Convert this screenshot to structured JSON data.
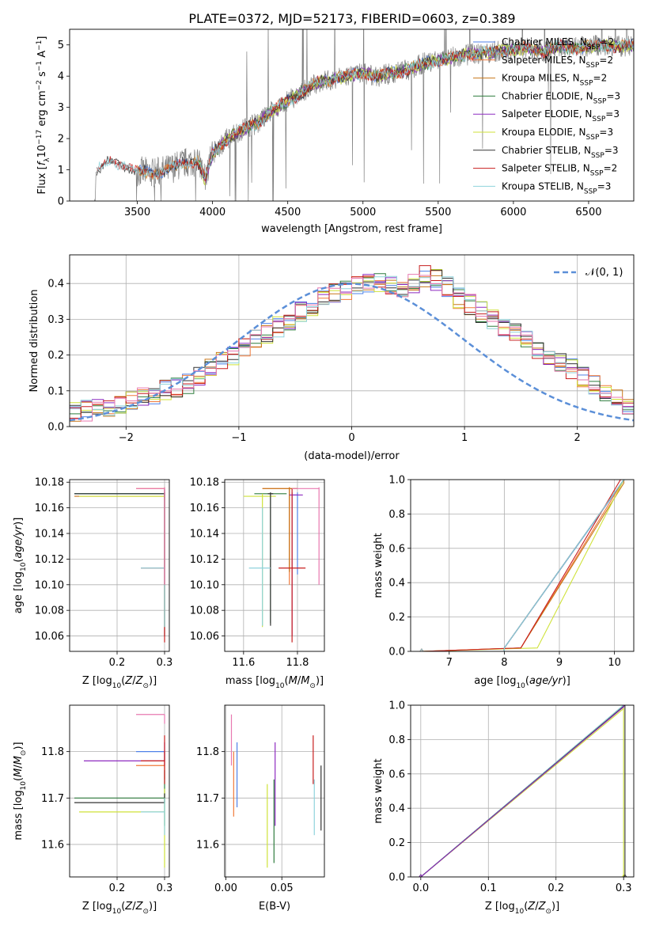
{
  "title": "PLATE=0372, MJD=52173, FIBERID=0603, z=0.389",
  "colors": {
    "chabrier_miles": "#4f81e8",
    "salpeter_miles": "#f07a3a",
    "kroupa_miles": "#c8761a",
    "chabrier_elodie": "#2f7d3e",
    "salpeter_elodie": "#8e2bc0",
    "kroupa_elodie": "#cfe23a",
    "chabrier_stelib": "#333333",
    "salpeter_stelib": "#c81e1e",
    "kroupa_stelib": "#8fd3dc",
    "data": "#808080",
    "gaussian": "#5b8fd8",
    "pink": "#e879b0"
  },
  "chart_data": [
    {
      "type": "line",
      "id": "spectrum",
      "title": "PLATE=0372, MJD=52173, FIBERID=0603, z=0.389",
      "xlabel": "wavelength [Angstrom, rest frame]",
      "ylabel_pre": "Flux [",
      "ylabel_fl": "f",
      "ylabel_fl_sub": "λ",
      "ylabel_mid": "10",
      "ylabel_exp1": "−17",
      "ylabel_unit": " erg cm",
      "ylabel_exp2": "−2",
      "ylabel_s": " s",
      "ylabel_exp3": "−1",
      "ylabel_a": " A",
      "ylabel_exp4": "−1",
      "ylabel_end": "]",
      "xlim": [
        3050,
        6800
      ],
      "ylim": [
        0,
        5.5
      ],
      "xticks": [
        "3500",
        "4000",
        "4500",
        "5000",
        "5500",
        "6000",
        "6500"
      ],
      "yticks": [
        "0",
        "1",
        "2",
        "3",
        "4",
        "5"
      ],
      "legend_position": "top-right",
      "legend": [
        {
          "name": "Chabrier MILES, N",
          "sub": "SSP",
          "tail": "=2"
        },
        {
          "name": "Salpeter MILES, N",
          "sub": "SSP",
          "tail": "=2"
        },
        {
          "name": "Kroupa MILES, N",
          "sub": "SSP",
          "tail": "=2"
        },
        {
          "name": "Chabrier ELODIE, N",
          "sub": "SSP",
          "tail": "=3"
        },
        {
          "name": "Salpeter ELODIE, N",
          "sub": "SSP",
          "tail": "=3"
        },
        {
          "name": "Kroupa ELODIE, N",
          "sub": "SSP",
          "tail": "=3"
        },
        {
          "name": "Chabrier STELIB, N",
          "sub": "SSP",
          "tail": "=3"
        },
        {
          "name": "Salpeter STELIB, N",
          "sub": "SSP",
          "tail": "=2"
        },
        {
          "name": "Kroupa STELIB, N",
          "sub": "SSP",
          "tail": "=3"
        }
      ],
      "continuum": [
        [
          3220,
          0
        ],
        [
          3225,
          0.9
        ],
        [
          3260,
          1.1
        ],
        [
          3300,
          1.25
        ],
        [
          3400,
          1.2
        ],
        [
          3500,
          0.95
        ],
        [
          3600,
          0.9
        ],
        [
          3700,
          1.0
        ],
        [
          3800,
          1.2
        ],
        [
          3900,
          1.3
        ],
        [
          3950,
          0.7
        ],
        [
          4000,
          1.5
        ],
        [
          4100,
          2.0
        ],
        [
          4200,
          2.3
        ],
        [
          4300,
          2.5
        ],
        [
          4400,
          2.9
        ],
        [
          4500,
          3.2
        ],
        [
          4600,
          3.5
        ],
        [
          4700,
          3.8
        ],
        [
          4800,
          3.9
        ],
        [
          4900,
          4.0
        ],
        [
          5000,
          4.1
        ],
        [
          5100,
          4.0
        ],
        [
          5200,
          4.1
        ],
        [
          5300,
          4.2
        ],
        [
          5400,
          4.4
        ],
        [
          5500,
          4.5
        ],
        [
          5600,
          4.6
        ],
        [
          5700,
          4.7
        ],
        [
          5800,
          4.75
        ],
        [
          5900,
          4.8
        ],
        [
          6000,
          4.85
        ],
        [
          6100,
          4.9
        ],
        [
          6200,
          4.8
        ],
        [
          6300,
          4.95
        ],
        [
          6400,
          4.9
        ],
        [
          6500,
          4.95
        ],
        [
          6600,
          5.0
        ],
        [
          6700,
          4.95
        ],
        [
          6800,
          5.0
        ]
      ]
    },
    {
      "type": "line",
      "id": "residuals",
      "xlabel": "(data-model)/error",
      "ylabel": "Normed distribution",
      "xlim": [
        -2.5,
        2.5
      ],
      "ylim": [
        0,
        0.48
      ],
      "xticks": [
        "−2",
        "−1",
        "0",
        "1",
        "2"
      ],
      "yticks": [
        "0.0",
        "0.1",
        "0.2",
        "0.3",
        "0.4"
      ],
      "legend_position": "top-right",
      "legend": [
        "𝒩(0, 1)"
      ],
      "bin_width": 0.1,
      "envelope": [
        0.04,
        0.045,
        0.05,
        0.055,
        0.06,
        0.07,
        0.08,
        0.09,
        0.1,
        0.11,
        0.12,
        0.14,
        0.16,
        0.18,
        0.2,
        0.22,
        0.24,
        0.26,
        0.28,
        0.3,
        0.32,
        0.34,
        0.36,
        0.37,
        0.38,
        0.39,
        0.4,
        0.4,
        0.39,
        0.38,
        0.4,
        0.42,
        0.41,
        0.39,
        0.36,
        0.34,
        0.32,
        0.3,
        0.28,
        0.26,
        0.24,
        0.22,
        0.2,
        0.18,
        0.16,
        0.14,
        0.12,
        0.1,
        0.08,
        0.06
      ]
    },
    {
      "type": "scatter",
      "id": "age-vs-z",
      "xlabel_pre": "Z [log",
      "xlabel_sub": "10",
      "xlabel_post": "(Z/Z",
      "xlabel_sun": "⊙",
      "xlabel_end": ")]",
      "ylabel_pre": "age  [log",
      "ylabel_sub": "10",
      "ylabel_post": "(age/yr)]",
      "xlim": [
        0.1,
        0.31
      ],
      "ylim": [
        10.048,
        10.182
      ],
      "xticks": [
        "0.2",
        "0.3"
      ],
      "yticks": [
        "10.06",
        "10.08",
        "10.10",
        "10.12",
        "10.14",
        "10.16",
        "10.18"
      ],
      "points": [
        {
          "series": "chabrier_miles",
          "x": 0.3,
          "y": 10.171,
          "xlo": 0.11,
          "ylo": 10.168,
          "yhi": 10.174
        },
        {
          "series": "salpeter_miles",
          "x": 0.3,
          "y": 10.175,
          "xlo": 0.24,
          "ylo": 10.172,
          "yhi": 10.176
        },
        {
          "series": "kroupa_miles",
          "x": 0.3,
          "y": 10.169,
          "xlo": 0.11,
          "ylo": 10.166,
          "yhi": 10.172
        },
        {
          "series": "chabrier_elodie",
          "x": 0.3,
          "y": 10.171,
          "xlo": 0.11,
          "ylo": 10.112,
          "yhi": 10.172
        },
        {
          "series": "kroupa_elodie",
          "x": 0.3,
          "y": 10.169,
          "xlo": 0.12,
          "ylo": 10.067,
          "yhi": 10.171
        },
        {
          "series": "chabrier_stelib",
          "x": 0.3,
          "y": 10.171,
          "xlo": 0.11,
          "ylo": 10.06,
          "yhi": 10.172
        },
        {
          "series": "salpeter_stelib",
          "x": 0.3,
          "y": 10.113,
          "xlo": 0.25,
          "ylo": 10.055,
          "yhi": 10.175
        },
        {
          "series": "kroupa_stelib",
          "x": 0.3,
          "y": 10.113,
          "xlo": 0.25,
          "ylo": 10.067,
          "yhi": 10.175
        },
        {
          "series": "pink",
          "x": 0.3,
          "y": 10.175,
          "xlo": 0.24,
          "ylo": 10.1,
          "yhi": 10.176
        }
      ]
    },
    {
      "type": "scatter",
      "id": "age-vs-mass",
      "xlabel_pre": "mass [log",
      "xlabel_sub": "10",
      "xlabel_post": "(M/M",
      "xlabel_sun": "⊙",
      "xlabel_end": ")]",
      "xlim": [
        11.53,
        11.9
      ],
      "ylim": [
        10.048,
        10.182
      ],
      "xticks": [
        "11.6",
        "11.8"
      ],
      "yticks": [
        "10.06",
        "10.08",
        "10.10",
        "10.12",
        "10.14",
        "10.16",
        "10.18"
      ],
      "points": [
        {
          "series": "chabrier_miles",
          "x": 11.8,
          "y": 10.17,
          "xlo": 11.78,
          "xhi": 11.8,
          "ylo": 10.108,
          "yhi": 10.172
        },
        {
          "series": "salpeter_miles",
          "x": 11.77,
          "y": 10.175,
          "xlo": 11.67,
          "xhi": 11.8,
          "ylo": 10.1,
          "yhi": 10.176
        },
        {
          "series": "kroupa_miles",
          "x": 11.77,
          "y": 10.175,
          "xlo": 11.67,
          "xhi": 11.8,
          "ylo": 10.11,
          "yhi": 10.176
        },
        {
          "series": "chabrier_elodie",
          "x": 11.7,
          "y": 10.171,
          "xlo": 11.64,
          "xhi": 11.76,
          "ylo": 10.07,
          "yhi": 10.172
        },
        {
          "series": "salpeter_elodie",
          "x": 11.78,
          "y": 10.17,
          "xlo": 11.77,
          "xhi": 11.82,
          "ylo": 10.06,
          "yhi": 10.172
        },
        {
          "series": "kroupa_elodie",
          "x": 11.67,
          "y": 10.169,
          "xlo": 11.6,
          "xhi": 11.72,
          "ylo": 10.067,
          "yhi": 10.171
        },
        {
          "series": "chabrier_stelib",
          "x": 11.7,
          "y": 10.171,
          "xlo": 11.69,
          "xhi": 11.71,
          "ylo": 10.068,
          "yhi": 10.172
        },
        {
          "series": "salpeter_stelib",
          "x": 11.78,
          "y": 10.113,
          "xlo": 11.73,
          "xhi": 11.83,
          "ylo": 10.055,
          "yhi": 10.175
        },
        {
          "series": "kroupa_stelib",
          "x": 11.67,
          "y": 10.113,
          "xlo": 11.62,
          "xhi": 11.7,
          "ylo": 10.068,
          "yhi": 10.16
        },
        {
          "series": "pink",
          "x": 11.88,
          "y": 10.175,
          "xlo": 11.78,
          "xhi": 11.88,
          "ylo": 10.1,
          "yhi": 10.176
        }
      ]
    },
    {
      "type": "line",
      "id": "mass-weight-age",
      "xlabel_pre": "age  [log",
      "xlabel_sub": "10",
      "xlabel_post": "(age/yr)]",
      "ylabel": "mass weight",
      "xlim": [
        6.3,
        10.35
      ],
      "ylim": [
        0,
        1
      ],
      "xticks": [
        "7",
        "8",
        "9",
        "10"
      ],
      "yticks": [
        "0.0",
        "0.2",
        "0.4",
        "0.6",
        "0.8",
        "1.0"
      ],
      "series": [
        {
          "name": "chabrier_miles",
          "x": [
            6.5,
            8.0,
            8.0,
            10.18,
            10.18
          ],
          "y": [
            0,
            0.0,
            0.02,
            1.0,
            1.0
          ]
        },
        {
          "name": "salpeter_miles",
          "x": [
            6.5,
            8.3,
            8.3,
            10.17,
            10.17
          ],
          "y": [
            0,
            0.02,
            0.02,
            1.0,
            1.0
          ]
        },
        {
          "name": "kroupa_miles",
          "x": [
            6.5,
            8.3,
            8.3,
            10.17,
            10.17
          ],
          "y": [
            0,
            0.02,
            0.02,
            0.98,
            1.0
          ]
        },
        {
          "name": "chabrier_elodie",
          "x": [
            6.5,
            8.0,
            8.0,
            10.17,
            10.17
          ],
          "y": [
            0,
            0.0,
            0.02,
            1.0,
            1.0
          ]
        },
        {
          "name": "salpeter_elodie",
          "x": [
            6.5,
            8.0,
            8.0,
            10.17,
            10.17
          ],
          "y": [
            0,
            0.0,
            0.02,
            1.0,
            1.0
          ]
        },
        {
          "name": "kroupa_elodie",
          "x": [
            6.5,
            8.6,
            8.6,
            10.17,
            10.17
          ],
          "y": [
            0,
            0.02,
            0.02,
            1.0,
            1.0
          ]
        },
        {
          "name": "chabrier_stelib",
          "x": [
            6.5,
            8.0,
            8.0,
            10.17,
            10.17
          ],
          "y": [
            0,
            0.0,
            0.02,
            1.0,
            1.0
          ]
        },
        {
          "name": "salpeter_stelib",
          "x": [
            6.5,
            8.3,
            8.3,
            10.11,
            10.11
          ],
          "y": [
            0,
            0.02,
            0.02,
            1.0,
            1.0
          ]
        },
        {
          "name": "kroupa_stelib",
          "x": [
            6.5,
            8.0,
            8.0,
            10.17,
            10.17
          ],
          "y": [
            0,
            0.0,
            0.02,
            1.0,
            1.0
          ]
        }
      ]
    },
    {
      "type": "scatter",
      "id": "mass-vs-z",
      "xlabel_pre": "Z [log",
      "xlabel_sub": "10",
      "xlabel_post": "(Z/Z",
      "xlabel_sun": "⊙",
      "xlabel_end": ")]",
      "ylabel_pre": "mass [log",
      "ylabel_sub": "10",
      "ylabel_post": "(M/M",
      "ylabel_sun": "⊙",
      "ylabel_end": ")]",
      "xlim": [
        0.1,
        0.31
      ],
      "ylim": [
        11.53,
        11.9
      ],
      "xticks": [
        "0.2",
        "0.3"
      ],
      "yticks": [
        "11.6",
        "11.7",
        "11.8"
      ],
      "points": [
        {
          "series": "chabrier_miles",
          "x": 0.3,
          "y": 11.8,
          "xlo": 0.24,
          "ylo": 11.78,
          "yhi": 11.8
        },
        {
          "series": "salpeter_miles",
          "x": 0.3,
          "y": 11.77,
          "xlo": 0.24,
          "ylo": 11.74,
          "yhi": 11.8
        },
        {
          "series": "chabrier_elodie",
          "x": 0.3,
          "y": 11.7,
          "xlo": 0.11,
          "ylo": 11.64,
          "yhi": 11.76
        },
        {
          "series": "salpeter_elodie",
          "x": 0.3,
          "y": 11.78,
          "xlo": 0.13,
          "ylo": 11.77,
          "yhi": 11.82
        },
        {
          "series": "kroupa_elodie",
          "x": 0.3,
          "y": 11.67,
          "xlo": 0.12,
          "ylo": 11.55,
          "yhi": 11.72
        },
        {
          "series": "chabrier_stelib",
          "x": 0.3,
          "y": 11.69,
          "xlo": 0.11,
          "ylo": 11.69,
          "yhi": 11.71
        },
        {
          "series": "salpeter_stelib",
          "x": 0.3,
          "y": 11.78,
          "xlo": 0.25,
          "ylo": 11.73,
          "yhi": 11.835
        },
        {
          "series": "kroupa_stelib",
          "x": 0.3,
          "y": 11.67,
          "xlo": 0.25,
          "ylo": 11.62,
          "yhi": 11.7
        },
        {
          "series": "pink",
          "x": 0.3,
          "y": 11.88,
          "xlo": 0.24,
          "ylo": 11.86,
          "yhi": 11.88
        }
      ]
    },
    {
      "type": "scatter",
      "id": "mass-vs-ebv",
      "xlabel": "E(B-V)",
      "xlim": [
        -0.001,
        0.088
      ],
      "ylim": [
        11.53,
        11.9
      ],
      "xticks": [
        "0.00",
        "0.05"
      ],
      "yticks": [
        "11.6",
        "11.7",
        "11.8"
      ],
      "points": [
        {
          "series": "chabrier_miles",
          "x": 0.01,
          "ylo": 11.68,
          "yhi": 11.82
        },
        {
          "series": "salpeter_miles",
          "x": 0.007,
          "ylo": 11.66,
          "yhi": 11.8
        },
        {
          "series": "pink",
          "x": 0.005,
          "ylo": 11.77,
          "yhi": 11.88
        },
        {
          "series": "kroupa_elodie",
          "x": 0.037,
          "ylo": 11.55,
          "yhi": 11.73
        },
        {
          "series": "chabrier_elodie",
          "x": 0.043,
          "ylo": 11.56,
          "yhi": 11.74
        },
        {
          "series": "salpeter_elodie",
          "x": 0.044,
          "ylo": 11.64,
          "yhi": 11.82
        },
        {
          "series": "salpeter_stelib",
          "x": 0.078,
          "ylo": 11.73,
          "yhi": 11.835
        },
        {
          "series": "kroupa_stelib",
          "x": 0.079,
          "ylo": 11.62,
          "yhi": 11.74
        },
        {
          "series": "chabrier_stelib",
          "x": 0.085,
          "ylo": 11.63,
          "yhi": 11.77
        }
      ]
    },
    {
      "type": "line",
      "id": "mass-weight-z",
      "xlabel_pre": "Z [log",
      "xlabel_sub": "10",
      "xlabel_post": "(Z/Z",
      "xlabel_sun": "⊙",
      "xlabel_end": ")]",
      "ylabel": "mass weight",
      "xlim": [
        -0.015,
        0.315
      ],
      "ylim": [
        0,
        1
      ],
      "xticks": [
        "0.0",
        "0.1",
        "0.2",
        "0.3"
      ],
      "yticks": [
        "0.0",
        "0.2",
        "0.4",
        "0.6",
        "0.8",
        "1.0"
      ],
      "series": [
        {
          "name": "chabrier_miles",
          "x": [
            0,
            0.3,
            0.3
          ],
          "y": [
            0,
            1.0,
            1.0
          ]
        },
        {
          "name": "salpeter_miles",
          "x": [
            0,
            0.3,
            0.3
          ],
          "y": [
            0,
            0.99,
            1.0
          ]
        },
        {
          "name": "kroupa_elodie",
          "x": [
            0,
            0.3,
            0.3
          ],
          "y": [
            0,
            0.98,
            0.0
          ]
        },
        {
          "name": "chabrier_elodie",
          "x": [
            0,
            0.3,
            0.3
          ],
          "y": [
            0,
            1.0,
            1.0
          ]
        },
        {
          "name": "kroupa_stelib",
          "x": [
            0,
            0.3,
            0.3
          ],
          "y": [
            0,
            1.0,
            1.0
          ]
        },
        {
          "name": "chabrier_stelib",
          "x": [
            0,
            0.302,
            0.302
          ],
          "y": [
            0,
            1.0,
            0.0
          ]
        },
        {
          "name": "salpeter_elodie",
          "x": [
            0,
            0.3,
            0.3
          ],
          "y": [
            0,
            0.99,
            1.0
          ]
        }
      ]
    }
  ]
}
